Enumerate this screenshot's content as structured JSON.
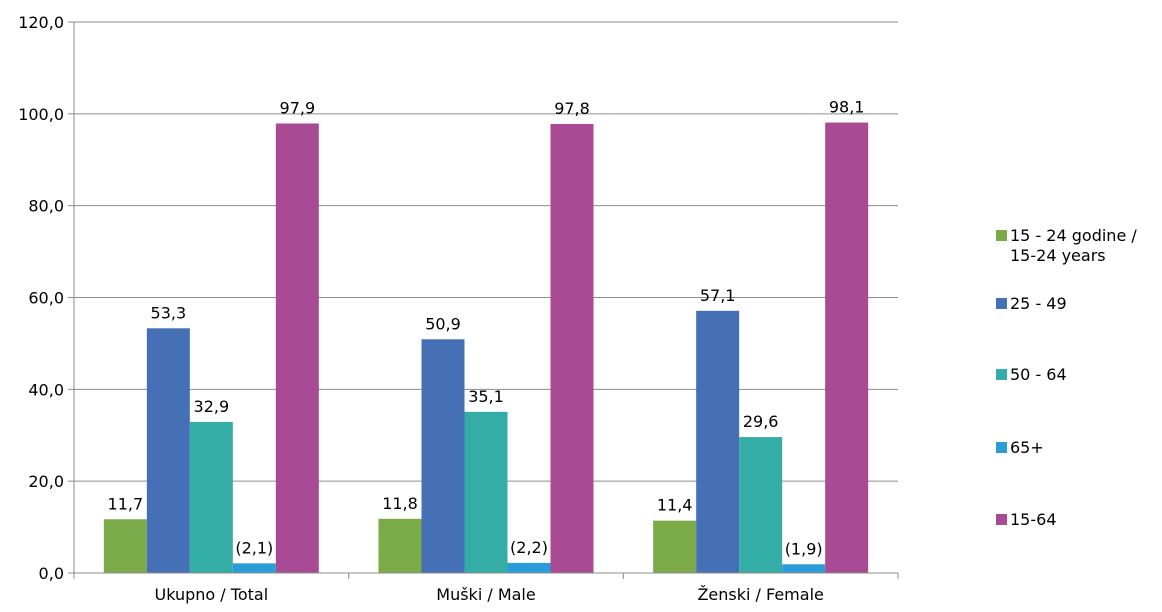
{
  "chart_data": {
    "type": "bar",
    "categories": [
      "Ukupno / Total",
      "Muški / Male",
      "Ženski / Female"
    ],
    "series": [
      {
        "name": "15 - 24 godine / 15-24 years",
        "legend_lines": [
          "15 - 24 godine /",
          "15-24 years"
        ],
        "color": "#7aab48",
        "values": [
          11.7,
          11.8,
          11.4
        ],
        "labels": [
          "11,7",
          "11,8",
          "11,4"
        ]
      },
      {
        "name": "25 - 49",
        "legend_lines": [
          "25 - 49"
        ],
        "color": "#4670b5",
        "values": [
          53.3,
          50.9,
          57.1
        ],
        "labels": [
          "53,3",
          "50,9",
          "57,1"
        ]
      },
      {
        "name": "50 - 64",
        "legend_lines": [
          "50 - 64"
        ],
        "color": "#34ada6",
        "values": [
          32.9,
          35.1,
          29.6
        ],
        "labels": [
          "32,9",
          "35,1",
          "29,6"
        ]
      },
      {
        "name": "65+",
        "legend_lines": [
          "65+"
        ],
        "color": "#2a9cd8",
        "values": [
          2.1,
          2.2,
          1.9
        ],
        "labels": [
          "(2,1)",
          "(2,2)",
          "(1,9)"
        ]
      },
      {
        "name": "15-64",
        "legend_lines": [
          "15-64"
        ],
        "color": "#a94a95",
        "values": [
          97.9,
          97.8,
          98.1
        ],
        "labels": [
          "97,9",
          "97,8",
          "98,1"
        ]
      }
    ],
    "y_ticks": [
      "0,0",
      "20,0",
      "40,0",
      "60,0",
      "80,0",
      "100,0",
      "120,0"
    ],
    "ylim": [
      0,
      120
    ],
    "grid": true,
    "legend": "right"
  }
}
